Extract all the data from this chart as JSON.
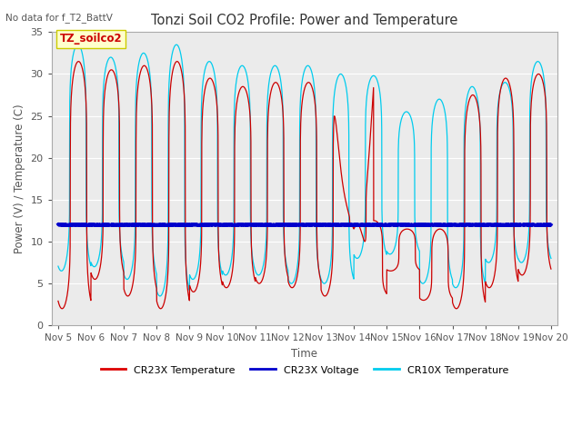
{
  "title": "Tonzi Soil CO2 Profile: Power and Temperature",
  "subtitle": "No data for f_T2_BattV",
  "xlabel": "Time",
  "ylabel": "Power (V) / Temperature (C)",
  "ylim": [
    0,
    35
  ],
  "xlim": [
    4.8,
    20.2
  ],
  "x_tick_labels": [
    "Nov 5",
    "Nov 6",
    "Nov 7",
    "Nov 8",
    "Nov 9",
    "Nov 10",
    "Nov 11",
    "Nov 12",
    "Nov 13",
    "Nov 14",
    "Nov 15",
    "Nov 16",
    "Nov 17",
    "Nov 18",
    "Nov 19",
    "Nov 20"
  ],
  "x_tick_positions": [
    5,
    6,
    7,
    8,
    9,
    10,
    11,
    12,
    13,
    14,
    15,
    16,
    17,
    18,
    19,
    20
  ],
  "voltage_value": 12.0,
  "background_color": "#ffffff",
  "plot_bg_color": "#ebebeb",
  "grid_color": "#ffffff",
  "annotation_box_color": "#ffffcc",
  "annotation_box_edge": "#cccc00",
  "annotation_text": "TZ_soilco2",
  "annotation_text_color": "#cc0000",
  "legend_items": [
    "CR23X Temperature",
    "CR23X Voltage",
    "CR10X Temperature"
  ],
  "legend_colors": [
    "#dd0000",
    "#0000cc",
    "#00ccee"
  ],
  "cr23x_color": "#cc0000",
  "cr10x_color": "#00ccee",
  "voltage_color": "#0000cc",
  "figsize": [
    6.4,
    4.8
  ],
  "dpi": 100
}
